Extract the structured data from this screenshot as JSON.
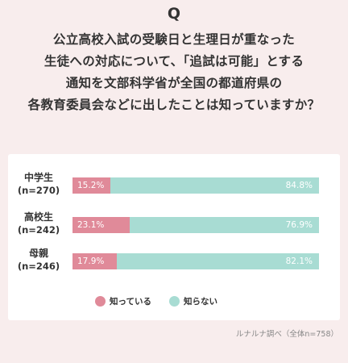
{
  "q_mark": "Q",
  "question_lines": [
    "公立高校入試の受験日と生理日が重なった",
    "生徒への対応について、「追試は可能」とする",
    "通知を文部科学省が全国の都道府県の",
    "各教育委員会などに出したことは知っていますか？"
  ],
  "source": "ルナルナ調べ（全体n=758）",
  "colors": {
    "know": "#e08a99",
    "dont_know": "#a8dcd3",
    "background": "#f8eded"
  },
  "chart_data": {
    "type": "bar",
    "orientation": "horizontal",
    "stacked": true,
    "categories": [
      "中学生",
      "高校生",
      "母親"
    ],
    "category_sub": [
      "(n=270)",
      "(n=242)",
      "(n=246)"
    ],
    "series": [
      {
        "name": "知っている",
        "values": [
          15.2,
          23.1,
          17.9
        ],
        "labels": [
          "15.2%",
          "23.1%",
          "17.9%"
        ]
      },
      {
        "name": "知らない",
        "values": [
          84.8,
          76.9,
          82.1
        ],
        "labels": [
          "84.8%",
          "76.9%",
          "82.1%"
        ]
      }
    ],
    "xlim": [
      0,
      100
    ],
    "legend": "bottom"
  }
}
